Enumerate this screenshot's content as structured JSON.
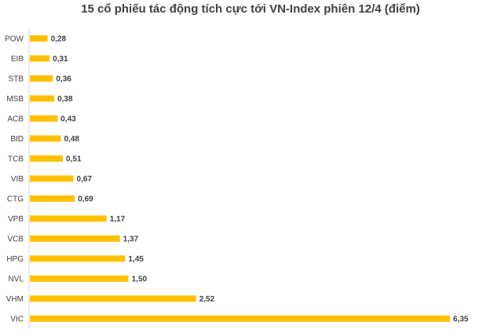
{
  "chart_data": {
    "type": "bar",
    "orientation": "horizontal",
    "title": "15 cổ phiếu tác động tích cực tới VN-Index phiên 12/4 (điểm)",
    "categories": [
      "POW",
      "EIB",
      "STB",
      "MSB",
      "ACB",
      "BID",
      "TCB",
      "VIB",
      "CTG",
      "VPB",
      "VCB",
      "HPG",
      "NVL",
      "VHM",
      "VIC"
    ],
    "values": [
      0.28,
      0.31,
      0.36,
      0.38,
      0.43,
      0.48,
      0.51,
      0.67,
      0.69,
      1.17,
      1.37,
      1.45,
      1.5,
      2.52,
      6.35
    ],
    "value_labels": [
      "0,28",
      "0,31",
      "0,36",
      "0,38",
      "0,43",
      "0,48",
      "0,51",
      "0,67",
      "0,69",
      "1,17",
      "1,37",
      "1,45",
      "1,50",
      "2,52",
      "6,35"
    ],
    "xlabel": "",
    "ylabel": "",
    "xlim": [
      0,
      6.35
    ],
    "grid": false,
    "legend": "none",
    "bar_color": "#FFC000",
    "axis_color": "#D9D9D9",
    "text_color": "#404040"
  }
}
